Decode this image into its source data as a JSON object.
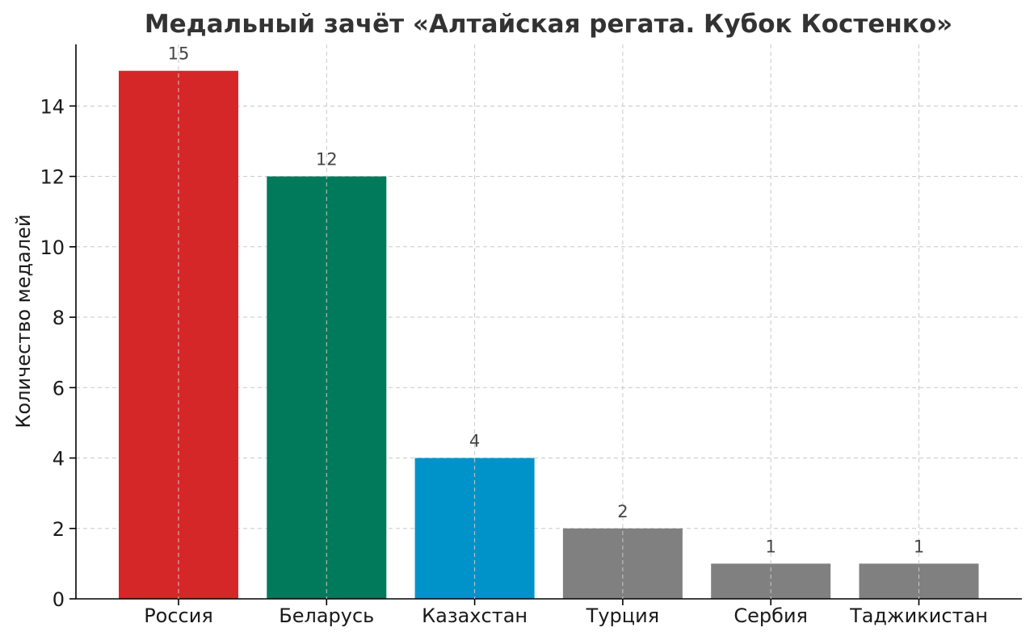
{
  "chart_data": {
    "type": "bar",
    "title": "Медальный зачёт «Алтайская регата. Кубок Костенко»",
    "xlabel": "",
    "ylabel": "Количество медалей",
    "categories": [
      "Россия",
      "Беларусь",
      "Казахстан",
      "Турция",
      "Сербия",
      "Таджикистан"
    ],
    "values": [
      15,
      12,
      4,
      2,
      1,
      1
    ],
    "value_labels": [
      "15",
      "12",
      "4",
      "2",
      "1",
      "1"
    ],
    "colors": [
      "#d62728",
      "#007a5a",
      "#0093c9",
      "#808080",
      "#808080",
      "#808080"
    ],
    "ylim": [
      0,
      15.75
    ],
    "yticks": [
      0,
      2,
      4,
      6,
      8,
      10,
      12,
      14
    ],
    "ytick_labels": [
      "0",
      "2",
      "4",
      "6",
      "8",
      "10",
      "12",
      "14"
    ],
    "grid": true,
    "legend": "none"
  }
}
